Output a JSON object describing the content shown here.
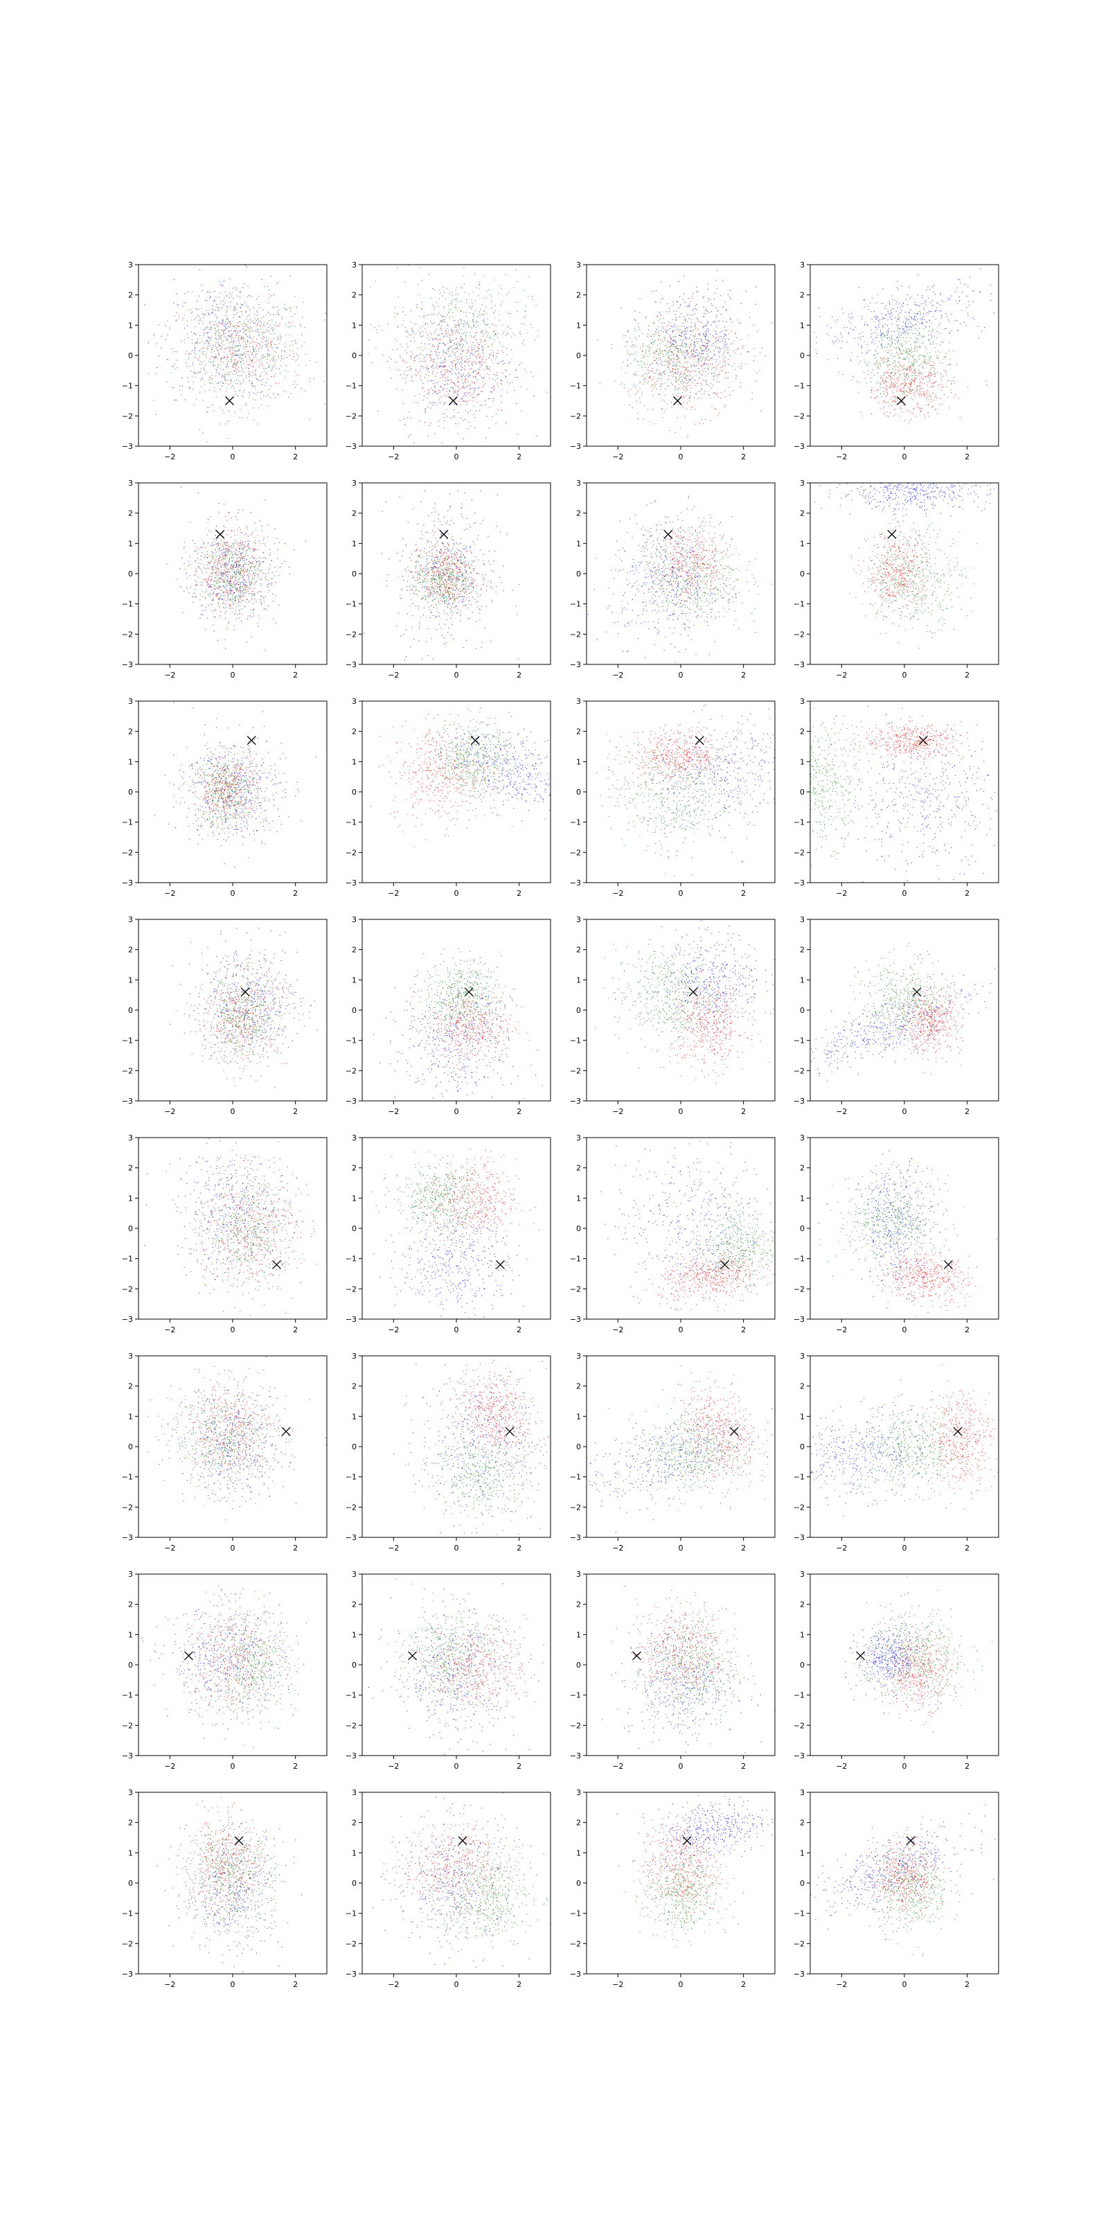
{
  "figure": {
    "rows": 8,
    "cols": 4,
    "tick_labels_x": [
      "−2",
      "0",
      "2"
    ],
    "tick_labels_y": [
      "−3",
      "−2",
      "−1",
      "0",
      "1",
      "2",
      "3"
    ]
  },
  "chart_data": {
    "type": "scatter",
    "layout": "8x4 grid of scatter subplots; each subplot shows three dense point clouds (red, green, blue) and one black x marker",
    "xlim": [
      -3,
      3
    ],
    "ylim": [
      -3,
      3
    ],
    "xticks": [
      -2,
      0,
      2
    ],
    "yticks": [
      -3,
      -2,
      -1,
      0,
      1,
      2,
      3
    ],
    "grid": false,
    "legend": "none",
    "colors": {
      "red": "#ff0000",
      "green": "#008000",
      "blue": "#0000ff",
      "marker": "#000000"
    },
    "marker_symbol": "x",
    "points_per_cloud": 420,
    "rows": [
      {
        "marker": [
          -0.1,
          -1.5
        ],
        "panels": [
          {
            "red": [
              0.3,
              0.1,
              1.0,
              0.9,
              0
            ],
            "green": [
              0.2,
              0.2,
              1.0,
              0.9,
              0
            ],
            "blue": [
              -0.2,
              0.6,
              1.0,
              1.0,
              0
            ]
          },
          {
            "red": [
              -0.1,
              -0.3,
              0.9,
              0.9,
              0
            ],
            "green": [
              0.1,
              1.0,
              1.1,
              0.8,
              0
            ],
            "blue": [
              0.0,
              -0.5,
              0.9,
              1.0,
              0
            ]
          },
          {
            "red": [
              0.2,
              -0.3,
              0.9,
              0.8,
              0
            ],
            "green": [
              -0.3,
              -0.2,
              0.8,
              0.8,
              0
            ],
            "blue": [
              0.5,
              0.6,
              0.8,
              0.8,
              0
            ]
          },
          {
            "red": [
              0.1,
              -1.0,
              0.7,
              0.5,
              0
            ],
            "green": [
              0.0,
              -0.1,
              0.7,
              0.7,
              0
            ],
            "blue": [
              0.0,
              1.2,
              1.3,
              0.6,
              0.55
            ]
          }
        ]
      },
      {
        "marker": [
          -0.4,
          1.3
        ],
        "panels": [
          {
            "red": [
              -0.1,
              0.1,
              0.6,
              0.7,
              0
            ],
            "green": [
              0.0,
              0.0,
              0.5,
              0.6,
              0
            ],
            "blue": [
              0.0,
              0.0,
              0.7,
              0.9,
              0
            ]
          },
          {
            "red": [
              -0.4,
              0.0,
              0.5,
              0.6,
              0
            ],
            "green": [
              -0.4,
              -0.2,
              0.5,
              0.5,
              0
            ],
            "blue": [
              -0.3,
              0.0,
              0.8,
              1.3,
              0
            ]
          },
          {
            "red": [
              0.3,
              0.3,
              0.6,
              0.7,
              0
            ],
            "green": [
              0.4,
              -0.2,
              0.8,
              0.8,
              0
            ],
            "blue": [
              -0.5,
              -0.2,
              0.9,
              1.0,
              0
            ]
          },
          {
            "red": [
              -0.2,
              0.0,
              0.5,
              0.7,
              0
            ],
            "green": [
              0.3,
              -0.1,
              0.8,
              0.8,
              0
            ],
            "blue": [
              0.2,
              2.7,
              1.2,
              0.3,
              0
            ]
          }
        ]
      },
      {
        "marker": [
          0.6,
          1.7
        ],
        "panels": [
          {
            "red": [
              -0.2,
              0.1,
              0.6,
              0.6,
              0
            ],
            "green": [
              -0.2,
              0.0,
              0.5,
              0.6,
              0
            ],
            "blue": [
              0.0,
              0.1,
              0.8,
              0.9,
              0
            ]
          },
          {
            "red": [
              -0.5,
              0.6,
              0.8,
              0.8,
              0
            ],
            "green": [
              0.5,
              1.2,
              0.6,
              0.6,
              0
            ],
            "blue": [
              1.6,
              0.7,
              0.9,
              0.7,
              -0.4
            ]
          },
          {
            "red": [
              -0.1,
              1.2,
              0.8,
              0.4,
              0
            ],
            "green": [
              -0.3,
              0.0,
              1.0,
              0.9,
              0
            ],
            "blue": [
              1.2,
              0.5,
              1.2,
              1.0,
              0.3
            ]
          },
          {
            "red": [
              0.3,
              1.7,
              0.8,
              0.3,
              0
            ],
            "green": [
              -2.6,
              0.3,
              0.6,
              1.0,
              0
            ],
            "blue": [
              0.6,
              -0.3,
              1.2,
              1.1,
              0
            ]
          }
        ]
      },
      {
        "marker": [
          0.4,
          0.6
        ],
        "panels": [
          {
            "red": [
              0.3,
              -0.3,
              0.7,
              0.8,
              0
            ],
            "green": [
              0.3,
              -0.3,
              0.6,
              0.7,
              0
            ],
            "blue": [
              0.5,
              0.4,
              0.8,
              0.9,
              0
            ]
          },
          {
            "red": [
              0.4,
              -0.5,
              0.7,
              0.6,
              0
            ],
            "green": [
              0.2,
              0.5,
              0.6,
              0.6,
              0
            ],
            "blue": [
              0.0,
              -1.0,
              0.9,
              1.1,
              0
            ]
          },
          {
            "red": [
              0.9,
              -0.5,
              0.6,
              0.7,
              0
            ],
            "green": [
              -0.5,
              0.5,
              0.8,
              0.8,
              0
            ],
            "blue": [
              1.0,
              1.0,
              0.8,
              0.8,
              0
            ]
          },
          {
            "red": [
              0.8,
              -0.4,
              0.5,
              0.5,
              0
            ],
            "green": [
              0.0,
              0.3,
              0.7,
              0.7,
              0
            ],
            "blue": [
              -0.6,
              -0.6,
              1.4,
              0.7,
              0.8
            ]
          }
        ]
      },
      {
        "marker": [
          1.4,
          -1.2
        ],
        "panels": [
          {
            "red": [
              0.5,
              0.0,
              0.8,
              1.0,
              0
            ],
            "green": [
              0.6,
              -0.1,
              0.7,
              0.9,
              0
            ],
            "blue": [
              0.0,
              0.5,
              0.9,
              1.1,
              0
            ]
          },
          {
            "red": [
              0.5,
              0.9,
              0.7,
              0.7,
              0
            ],
            "green": [
              -0.6,
              1.0,
              0.7,
              0.6,
              0
            ],
            "blue": [
              0.0,
              -1.0,
              0.9,
              0.9,
              0
            ]
          },
          {
            "red": [
              0.9,
              -1.6,
              0.8,
              0.4,
              0.3
            ],
            "green": [
              1.8,
              -0.6,
              0.6,
              0.7,
              0
            ],
            "blue": [
              0.3,
              0.3,
              1.2,
              1.3,
              0
            ]
          },
          {
            "red": [
              0.6,
              -1.6,
              0.7,
              0.4,
              -0.2
            ],
            "green": [
              -0.5,
              0.3,
              0.8,
              0.7,
              0
            ],
            "blue": [
              -0.2,
              0.1,
              0.6,
              1.0,
              0
            ]
          }
        ]
      },
      {
        "marker": [
          1.7,
          0.5
        ],
        "panels": [
          {
            "red": [
              -0.2,
              0.6,
              0.8,
              0.8,
              0
            ],
            "green": [
              -0.3,
              0.3,
              0.8,
              0.8,
              0
            ],
            "blue": [
              0.1,
              0.0,
              0.8,
              0.9,
              0
            ]
          },
          {
            "red": [
              1.2,
              1.1,
              0.6,
              0.7,
              -0.3
            ],
            "green": [
              0.8,
              -0.9,
              0.8,
              0.8,
              0
            ],
            "blue": [
              0.8,
              0.2,
              1.0,
              1.1,
              0
            ]
          },
          {
            "red": [
              1.2,
              0.5,
              0.6,
              0.8,
              -0.3
            ],
            "green": [
              0.4,
              -0.2,
              0.8,
              0.7,
              0
            ],
            "blue": [
              -0.6,
              -0.4,
              1.4,
              0.8,
              0.6
            ]
          },
          {
            "red": [
              1.8,
              0.3,
              0.5,
              0.8,
              0
            ],
            "green": [
              0.2,
              -0.1,
              0.8,
              0.7,
              0
            ],
            "blue": [
              -1.5,
              -0.3,
              1.1,
              0.7,
              0.2
            ]
          }
        ]
      },
      {
        "marker": [
          -1.4,
          0.3
        ],
        "panels": [
          {
            "red": [
              0.0,
              0.2,
              0.8,
              0.9,
              0
            ],
            "green": [
              0.6,
              0.0,
              0.7,
              0.8,
              0
            ],
            "blue": [
              -0.2,
              0.1,
              0.9,
              0.9,
              0
            ]
          },
          {
            "red": [
              0.6,
              0.0,
              0.8,
              0.7,
              0
            ],
            "green": [
              -0.3,
              0.3,
              0.7,
              0.8,
              0
            ],
            "blue": [
              0.0,
              -0.3,
              1.0,
              1.1,
              0
            ]
          },
          {
            "red": [
              0.0,
              0.5,
              0.7,
              0.8,
              0
            ],
            "green": [
              0.3,
              -0.1,
              0.7,
              0.9,
              0
            ],
            "blue": [
              0.0,
              -0.6,
              0.9,
              0.9,
              0
            ]
          },
          {
            "red": [
              0.5,
              -0.2,
              0.5,
              0.6,
              0
            ],
            "green": [
              0.4,
              0.3,
              0.8,
              0.8,
              0
            ],
            "blue": [
              -0.5,
              0.2,
              0.5,
              0.5,
              0
            ]
          }
        ]
      },
      {
        "marker": [
          0.2,
          1.4
        ],
        "panels": [
          {
            "red": [
              -0.2,
              0.6,
              0.6,
              0.8,
              0
            ],
            "green": [
              -0.1,
              0.3,
              0.7,
              0.8,
              0
            ],
            "blue": [
              0.0,
              -0.3,
              0.8,
              1.0,
              0
            ]
          },
          {
            "red": [
              -0.1,
              0.6,
              0.8,
              0.7,
              0
            ],
            "green": [
              0.8,
              -0.5,
              0.8,
              0.7,
              0
            ],
            "blue": [
              0.0,
              0.0,
              1.0,
              1.1,
              0
            ]
          },
          {
            "red": [
              0.0,
              0.5,
              0.6,
              0.8,
              0
            ],
            "green": [
              0.0,
              -0.4,
              0.6,
              0.7,
              0
            ],
            "blue": [
              1.0,
              1.8,
              0.9,
              0.5,
              0.3
            ]
          },
          {
            "red": [
              0.0,
              0.2,
              0.5,
              0.6,
              0
            ],
            "green": [
              0.2,
              -0.2,
              0.6,
              0.7,
              0
            ],
            "blue": [
              -0.5,
              0.4,
              1.3,
              0.7,
              0.7
            ]
          }
        ]
      }
    ]
  }
}
